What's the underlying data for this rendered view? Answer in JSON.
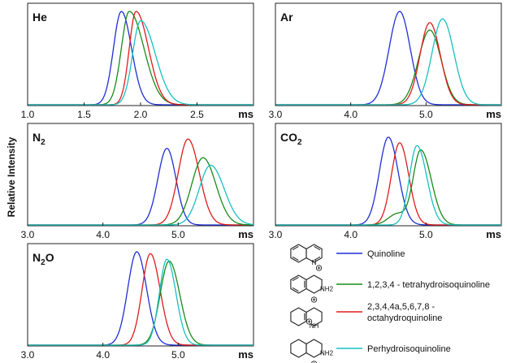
{
  "ylabel": "Relative Intensity",
  "legend": {
    "entries": [
      {
        "label_lines": [
          "Quinoline"
        ],
        "color": "#1f2fd6",
        "structure": "quinoline"
      },
      {
        "label_lines": [
          "1,2,3,4 - tetrahydroisoquinoline"
        ],
        "color": "#1a8a1a",
        "structure": "tetrahydroisoquinoline"
      },
      {
        "label_lines": [
          "2,3,4,4a,5,6,7,8 -",
          "octahydroquinoline"
        ],
        "color": "#e01b1b",
        "structure": "octahydroquinoline"
      },
      {
        "label_lines": [
          "Perhydroisoquinoline"
        ],
        "color": "#18c0c0",
        "structure": "perhydroisoquinoline"
      }
    ]
  },
  "chart_data": [
    {
      "type": "line",
      "gas_text": "He",
      "gas_sub": "",
      "gas_tail": "",
      "xlim": [
        1.0,
        3.0
      ],
      "xticks": [
        1.0,
        1.5,
        2.0,
        2.5
      ],
      "xtick_labels": [
        "1.0",
        "1.5",
        "2.0",
        "2.5"
      ],
      "xlabel": "ms",
      "series": [
        {
          "color": "#1f2fd6",
          "peaks": [
            [
              1.83,
              1.0,
              0.07,
              0.09
            ]
          ]
        },
        {
          "color": "#1a8a1a",
          "peaks": [
            [
              1.9,
              1.0,
              0.07,
              0.13
            ]
          ]
        },
        {
          "color": "#e01b1b",
          "peaks": [
            [
              1.96,
              1.0,
              0.06,
              0.11
            ]
          ]
        },
        {
          "color": "#18c0c0",
          "peaks": [
            [
              2.0,
              0.9,
              0.07,
              0.13
            ]
          ]
        }
      ]
    },
    {
      "type": "line",
      "gas_text": "Ar",
      "gas_sub": "",
      "gas_tail": "",
      "xlim": [
        3.0,
        6.0
      ],
      "xticks": [
        3.0,
        4.0,
        5.0
      ],
      "xtick_labels": [
        "3.0",
        "4.0",
        "5.0"
      ],
      "xlabel": "ms",
      "series": [
        {
          "color": "#1f2fd6",
          "peaks": [
            [
              4.65,
              1.0,
              0.14,
              0.14
            ]
          ]
        },
        {
          "color": "#1a8a1a",
          "peaks": [
            [
              5.05,
              0.8,
              0.15,
              0.15
            ]
          ]
        },
        {
          "color": "#e01b1b",
          "peaks": [
            [
              5.05,
              0.88,
              0.13,
              0.14
            ]
          ]
        },
        {
          "color": "#18c0c0",
          "peaks": [
            [
              5.22,
              0.92,
              0.14,
              0.15
            ]
          ]
        }
      ]
    },
    {
      "type": "line",
      "gas_text": "N",
      "gas_sub": "2",
      "gas_tail": "",
      "xlim": [
        3.0,
        6.0
      ],
      "xticks": [
        3.0,
        4.0,
        5.0
      ],
      "xtick_labels": [
        "3.0",
        "4.0",
        "5.0"
      ],
      "xlabel": "ms",
      "series": [
        {
          "color": "#1f2fd6",
          "peaks": [
            [
              4.85,
              0.82,
              0.12,
              0.12
            ]
          ]
        },
        {
          "color": "#e01b1b",
          "peaks": [
            [
              5.13,
              0.92,
              0.13,
              0.15
            ]
          ]
        },
        {
          "color": "#1a8a1a",
          "peaks": [
            [
              5.33,
              0.72,
              0.15,
              0.17
            ]
          ]
        },
        {
          "color": "#18c0c0",
          "peaks": [
            [
              5.43,
              0.64,
              0.15,
              0.18
            ]
          ]
        }
      ]
    },
    {
      "type": "line",
      "gas_text": "CO",
      "gas_sub": "2",
      "gas_tail": "",
      "xlim": [
        3.0,
        6.0
      ],
      "xticks": [
        3.0,
        4.0,
        5.0
      ],
      "xtick_labels": [
        "3.0",
        "4.0",
        "5.0"
      ],
      "xlabel": "ms",
      "series": [
        {
          "color": "#1f2fd6",
          "peaks": [
            [
              4.5,
              0.94,
              0.12,
              0.13
            ]
          ]
        },
        {
          "color": "#e01b1b",
          "peaks": [
            [
              4.65,
              0.88,
              0.11,
              0.12
            ]
          ]
        },
        {
          "color": "#1a8a1a",
          "peaks": [
            [
              4.93,
              0.8,
              0.1,
              0.14
            ],
            [
              4.62,
              0.12,
              0.12,
              0.12
            ]
          ]
        },
        {
          "color": "#18c0c0",
          "peaks": [
            [
              4.88,
              0.85,
              0.1,
              0.13
            ]
          ]
        }
      ]
    },
    {
      "type": "line",
      "gas_text": "N",
      "gas_sub": "2",
      "gas_tail": "O",
      "xlim": [
        3.0,
        6.0
      ],
      "xticks": [
        3.0,
        4.0,
        5.0
      ],
      "xtick_labels": [
        "3.0",
        "4.0",
        "5.0"
      ],
      "xlabel": "ms",
      "series": [
        {
          "color": "#1f2fd6",
          "peaks": [
            [
              4.45,
              1.0,
              0.12,
              0.13
            ]
          ]
        },
        {
          "color": "#e01b1b",
          "peaks": [
            [
              4.63,
              0.98,
              0.11,
              0.13
            ]
          ]
        },
        {
          "color": "#1a8a1a",
          "peaks": [
            [
              4.88,
              0.9,
              0.12,
              0.14
            ]
          ]
        },
        {
          "color": "#18c0c0",
          "peaks": [
            [
              4.85,
              0.92,
              0.1,
              0.12
            ]
          ]
        }
      ]
    }
  ]
}
